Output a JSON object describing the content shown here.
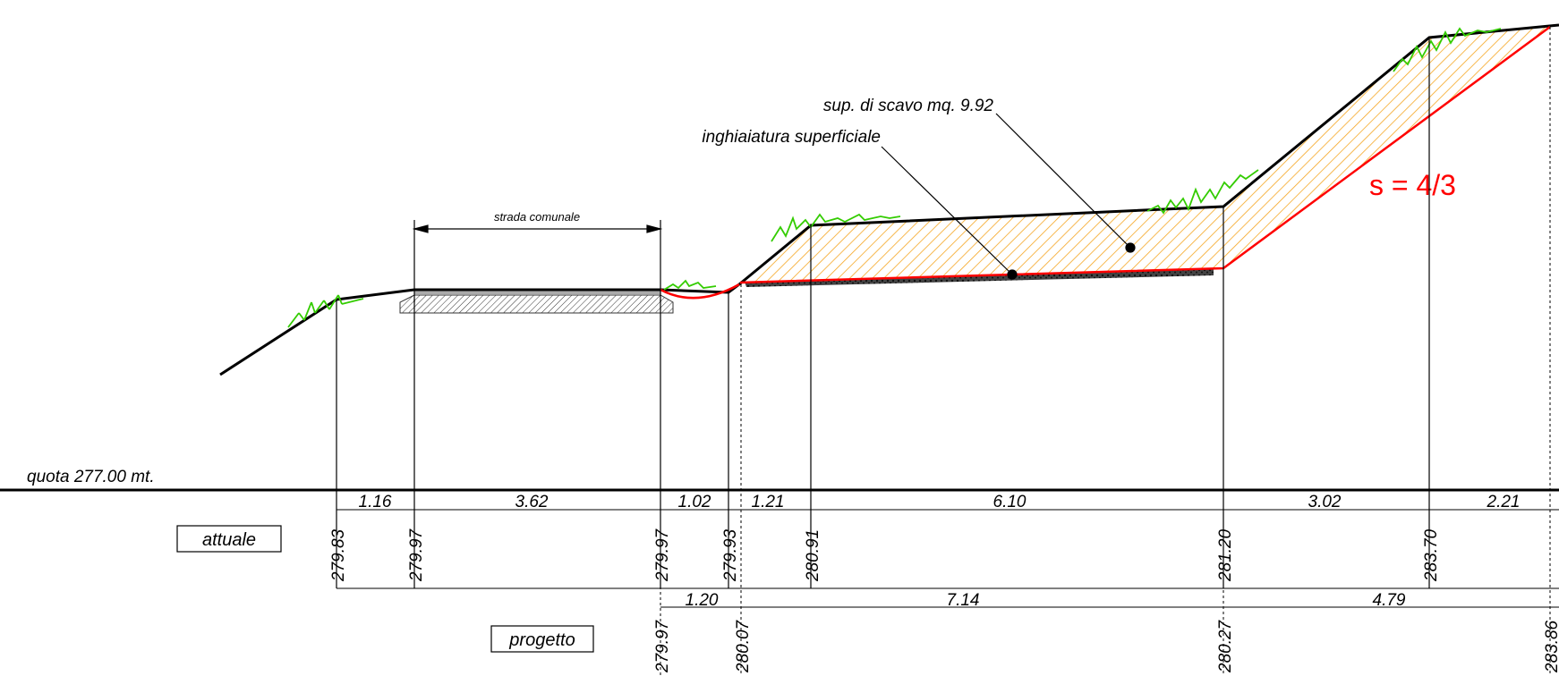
{
  "annotations": {
    "strada": "strada comunale",
    "scavo": "sup. di scavo mq. 9.92",
    "inghiaiatura": "inghiaiatura superficiale",
    "slope": "s = 4/3",
    "quota": "quota 277.00 mt."
  },
  "legend": {
    "attuale": "attuale",
    "progetto": "progetto"
  },
  "attuale": {
    "distances": [
      "1.16",
      "3.62",
      "1.02",
      "1.21",
      "6.10",
      "3.02",
      "2.21"
    ],
    "elevations": [
      "279.83",
      "279.97",
      "279.97",
      "279.93",
      "280.91",
      "281.20",
      "283.70"
    ]
  },
  "progetto": {
    "distances": [
      "1.20",
      "7.14",
      "4.79"
    ],
    "elevations": [
      "279.97",
      "280.07",
      "280.27",
      "283.86"
    ]
  },
  "colors": {
    "terrain": "#000000",
    "excavation_line": "#ff0000",
    "hatch": "#f5a623",
    "grass": "#33cc00",
    "slope_text": "#ff0000"
  }
}
